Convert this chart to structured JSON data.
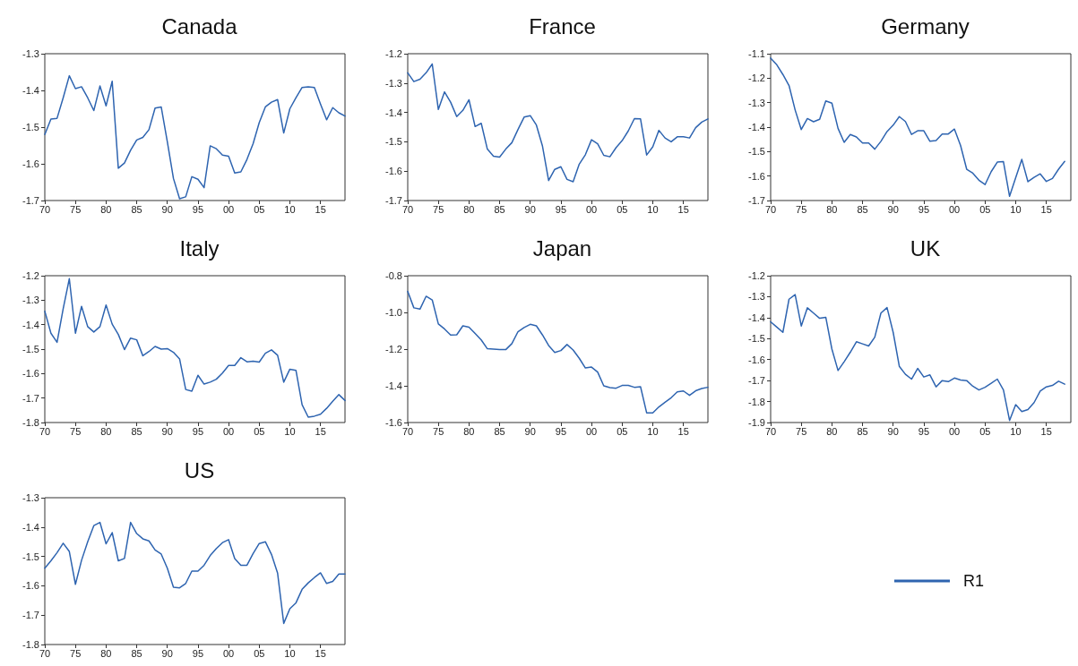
{
  "chart_data": [
    {
      "type": "line",
      "title": "Canada",
      "marker": "none",
      "grid": false,
      "xlim": [
        1970,
        2019
      ],
      "xticks": [
        {
          "value": 1970,
          "label": "70"
        },
        {
          "value": 1975,
          "label": "75"
        },
        {
          "value": 1980,
          "label": "80"
        },
        {
          "value": 1985,
          "label": "85"
        },
        {
          "value": 1990,
          "label": "90"
        },
        {
          "value": 1995,
          "label": "95"
        },
        {
          "value": 2000,
          "label": "00"
        },
        {
          "value": 2005,
          "label": "05"
        },
        {
          "value": 2010,
          "label": "10"
        },
        {
          "value": 2015,
          "label": "15"
        }
      ],
      "ylim": [
        -1.7,
        -1.3
      ],
      "yticks": [
        -1.7,
        -1.6,
        -1.5,
        -1.4,
        -1.3
      ],
      "x": [
        1970,
        1971,
        1972,
        1973,
        1974,
        1975,
        1976,
        1977,
        1978,
        1979,
        1980,
        1981,
        1982,
        1983,
        1984,
        1985,
        1986,
        1987,
        1988,
        1989,
        1990,
        1991,
        1992,
        1993,
        1994,
        1995,
        1996,
        1997,
        1998,
        1999,
        2000,
        2001,
        2002,
        2003,
        2004,
        2005,
        2006,
        2007,
        2008,
        2009,
        2010,
        2011,
        2012,
        2013,
        2014,
        2015,
        2016,
        2017,
        2018,
        2019
      ],
      "series": [
        {
          "color": "#2e64b0",
          "values": [
            -1.52,
            -1.478,
            -1.476,
            -1.42,
            -1.36,
            -1.395,
            -1.39,
            -1.42,
            -1.455,
            -1.388,
            -1.442,
            -1.375,
            -1.612,
            -1.598,
            -1.563,
            -1.535,
            -1.528,
            -1.507,
            -1.448,
            -1.445,
            -1.54,
            -1.64,
            -1.695,
            -1.69,
            -1.635,
            -1.642,
            -1.665,
            -1.551,
            -1.559,
            -1.576,
            -1.579,
            -1.625,
            -1.622,
            -1.588,
            -1.545,
            -1.488,
            -1.445,
            -1.432,
            -1.425,
            -1.516,
            -1.45,
            -1.42,
            -1.392,
            -1.39,
            -1.392,
            -1.437,
            -1.48,
            -1.447,
            -1.461,
            -1.47
          ]
        }
      ]
    },
    {
      "type": "line",
      "title": "France",
      "marker": "none",
      "grid": false,
      "xlim": [
        1970,
        2019
      ],
      "xticks": [
        {
          "value": 1970,
          "label": "70"
        },
        {
          "value": 1975,
          "label": "75"
        },
        {
          "value": 1980,
          "label": "80"
        },
        {
          "value": 1985,
          "label": "85"
        },
        {
          "value": 1990,
          "label": "90"
        },
        {
          "value": 1995,
          "label": "95"
        },
        {
          "value": 2000,
          "label": "00"
        },
        {
          "value": 2005,
          "label": "05"
        },
        {
          "value": 2010,
          "label": "10"
        },
        {
          "value": 2015,
          "label": "15"
        }
      ],
      "ylim": [
        -1.7,
        -1.2
      ],
      "yticks": [
        -1.7,
        -1.6,
        -1.5,
        -1.4,
        -1.3,
        -1.2
      ],
      "x": [
        1970,
        1971,
        1972,
        1973,
        1974,
        1975,
        1976,
        1977,
        1978,
        1979,
        1980,
        1981,
        1982,
        1983,
        1984,
        1985,
        1986,
        1987,
        1988,
        1989,
        1990,
        1991,
        1992,
        1993,
        1994,
        1995,
        1996,
        1997,
        1998,
        1999,
        2000,
        2001,
        2002,
        2003,
        2004,
        2005,
        2006,
        2007,
        2008,
        2009,
        2010,
        2011,
        2012,
        2013,
        2014,
        2015,
        2016,
        2017,
        2018,
        2019
      ],
      "series": [
        {
          "color": "#2e64b0",
          "values": [
            -1.265,
            -1.295,
            -1.287,
            -1.265,
            -1.235,
            -1.39,
            -1.33,
            -1.365,
            -1.414,
            -1.393,
            -1.357,
            -1.448,
            -1.437,
            -1.525,
            -1.549,
            -1.552,
            -1.525,
            -1.503,
            -1.458,
            -1.416,
            -1.411,
            -1.443,
            -1.515,
            -1.632,
            -1.594,
            -1.585,
            -1.628,
            -1.636,
            -1.576,
            -1.544,
            -1.493,
            -1.507,
            -1.546,
            -1.551,
            -1.52,
            -1.496,
            -1.463,
            -1.421,
            -1.422,
            -1.545,
            -1.517,
            -1.461,
            -1.487,
            -1.5,
            -1.483,
            -1.483,
            -1.487,
            -1.452,
            -1.433,
            -1.422
          ]
        }
      ]
    },
    {
      "type": "line",
      "title": "Germany",
      "marker": "none",
      "grid": false,
      "xlim": [
        1970,
        2019
      ],
      "xticks": [
        {
          "value": 1970,
          "label": "70"
        },
        {
          "value": 1975,
          "label": "75"
        },
        {
          "value": 1980,
          "label": "80"
        },
        {
          "value": 1985,
          "label": "85"
        },
        {
          "value": 1990,
          "label": "90"
        },
        {
          "value": 1995,
          "label": "95"
        },
        {
          "value": 2000,
          "label": "00"
        },
        {
          "value": 2005,
          "label": "05"
        },
        {
          "value": 2010,
          "label": "10"
        },
        {
          "value": 2015,
          "label": "15"
        }
      ],
      "ylim": [
        -1.7,
        -1.1
      ],
      "yticks": [
        -1.7,
        -1.6,
        -1.5,
        -1.4,
        -1.3,
        -1.2,
        -1.1
      ],
      "series": [
        {
          "color": "#2e64b0",
          "x": [
            1970,
            1971,
            1972,
            1973,
            1974,
            1975,
            1976,
            1977,
            1978,
            1979,
            1980,
            1981,
            1982,
            1983,
            1984,
            1985,
            1986,
            1987,
            1988,
            1989,
            1990,
            1991,
            1992,
            1993,
            1994,
            1995,
            1996,
            1997,
            1998,
            1999,
            2000,
            2001,
            2002,
            2003,
            2004,
            2005,
            2006,
            2007,
            2008,
            2009,
            2010,
            2011,
            2012,
            2013,
            2014,
            2015,
            2016,
            2017,
            2018
          ],
          "values": [
            -1.118,
            -1.145,
            -1.185,
            -1.23,
            -1.33,
            -1.41,
            -1.365,
            -1.378,
            -1.368,
            -1.293,
            -1.302,
            -1.405,
            -1.462,
            -1.43,
            -1.44,
            -1.465,
            -1.465,
            -1.49,
            -1.458,
            -1.418,
            -1.392,
            -1.357,
            -1.377,
            -1.43,
            -1.415,
            -1.415,
            -1.458,
            -1.455,
            -1.428,
            -1.428,
            -1.408,
            -1.475,
            -1.572,
            -1.588,
            -1.617,
            -1.635,
            -1.582,
            -1.543,
            -1.541,
            -1.683,
            -1.607,
            -1.532,
            -1.623,
            -1.605,
            -1.591,
            -1.622,
            -1.61,
            -1.572,
            -1.54
          ]
        }
      ]
    },
    {
      "type": "line",
      "title": "Italy",
      "marker": "none",
      "grid": false,
      "xlim": [
        1970,
        2019
      ],
      "xticks": [
        {
          "value": 1970,
          "label": "70"
        },
        {
          "value": 1975,
          "label": "75"
        },
        {
          "value": 1980,
          "label": "80"
        },
        {
          "value": 1985,
          "label": "85"
        },
        {
          "value": 1990,
          "label": "90"
        },
        {
          "value": 1995,
          "label": "95"
        },
        {
          "value": 2000,
          "label": "00"
        },
        {
          "value": 2005,
          "label": "05"
        },
        {
          "value": 2010,
          "label": "10"
        },
        {
          "value": 2015,
          "label": "15"
        }
      ],
      "ylim": [
        -1.8,
        -1.2
      ],
      "yticks": [
        -1.8,
        -1.7,
        -1.6,
        -1.5,
        -1.4,
        -1.3,
        -1.2
      ],
      "x": [
        1970,
        1971,
        1972,
        1973,
        1974,
        1975,
        1976,
        1977,
        1978,
        1979,
        1980,
        1981,
        1982,
        1983,
        1984,
        1985,
        1986,
        1987,
        1988,
        1989,
        1990,
        1991,
        1992,
        1993,
        1994,
        1995,
        1996,
        1997,
        1998,
        1999,
        2000,
        2001,
        2002,
        2003,
        2004,
        2005,
        2006,
        2007,
        2008,
        2009,
        2010,
        2011,
        2012,
        2013,
        2014,
        2015,
        2016,
        2017,
        2018,
        2019
      ],
      "series": [
        {
          "color": "#2e64b0",
          "values": [
            -1.345,
            -1.435,
            -1.472,
            -1.335,
            -1.212,
            -1.435,
            -1.325,
            -1.408,
            -1.43,
            -1.408,
            -1.32,
            -1.398,
            -1.44,
            -1.502,
            -1.455,
            -1.462,
            -1.527,
            -1.51,
            -1.489,
            -1.5,
            -1.498,
            -1.513,
            -1.54,
            -1.665,
            -1.672,
            -1.607,
            -1.643,
            -1.635,
            -1.623,
            -1.598,
            -1.567,
            -1.567,
            -1.535,
            -1.552,
            -1.549,
            -1.553,
            -1.517,
            -1.503,
            -1.525,
            -1.635,
            -1.582,
            -1.587,
            -1.727,
            -1.778,
            -1.774,
            -1.766,
            -1.742,
            -1.713,
            -1.686,
            -1.71
          ]
        }
      ]
    },
    {
      "type": "line",
      "title": "Japan",
      "marker": "none",
      "grid": false,
      "xlim": [
        1970,
        2019
      ],
      "xticks": [
        {
          "value": 1970,
          "label": "70"
        },
        {
          "value": 1975,
          "label": "75"
        },
        {
          "value": 1980,
          "label": "80"
        },
        {
          "value": 1985,
          "label": "85"
        },
        {
          "value": 1990,
          "label": "90"
        },
        {
          "value": 1995,
          "label": "95"
        },
        {
          "value": 2000,
          "label": "00"
        },
        {
          "value": 2005,
          "label": "05"
        },
        {
          "value": 2010,
          "label": "10"
        },
        {
          "value": 2015,
          "label": "15"
        }
      ],
      "ylim": [
        -1.6,
        -0.8
      ],
      "yticks": [
        -1.6,
        -1.4,
        -1.2,
        {
          "value": -1,
          "label": "-1.0"
        },
        -0.8
      ],
      "x": [
        1970,
        1971,
        1972,
        1973,
        1974,
        1975,
        1976,
        1977,
        1978,
        1979,
        1980,
        1981,
        1982,
        1983,
        1984,
        1985,
        1986,
        1987,
        1988,
        1989,
        1990,
        1991,
        1992,
        1993,
        1994,
        1995,
        1996,
        1997,
        1998,
        1999,
        2000,
        2001,
        2002,
        2003,
        2004,
        2005,
        2006,
        2007,
        2008,
        2009,
        2010,
        2011,
        2012,
        2013,
        2014,
        2015,
        2016,
        2017,
        2018,
        2019
      ],
      "series": [
        {
          "color": "#2e64b0",
          "values": [
            -0.885,
            -0.975,
            -0.982,
            -0.912,
            -0.932,
            -1.063,
            -1.09,
            -1.123,
            -1.122,
            -1.073,
            -1.08,
            -1.115,
            -1.15,
            -1.198,
            -1.2,
            -1.202,
            -1.203,
            -1.17,
            -1.105,
            -1.082,
            -1.065,
            -1.073,
            -1.123,
            -1.18,
            -1.218,
            -1.208,
            -1.175,
            -1.205,
            -1.25,
            -1.303,
            -1.298,
            -1.325,
            -1.4,
            -1.41,
            -1.413,
            -1.398,
            -1.398,
            -1.408,
            -1.405,
            -1.547,
            -1.548,
            -1.515,
            -1.49,
            -1.465,
            -1.433,
            -1.428,
            -1.452,
            -1.427,
            -1.415,
            -1.408
          ]
        }
      ]
    },
    {
      "type": "line",
      "title": "UK",
      "marker": "none",
      "grid": false,
      "xlim": [
        1970,
        2019
      ],
      "xticks": [
        {
          "value": 1970,
          "label": "70"
        },
        {
          "value": 1975,
          "label": "75"
        },
        {
          "value": 1980,
          "label": "80"
        },
        {
          "value": 1985,
          "label": "85"
        },
        {
          "value": 1990,
          "label": "90"
        },
        {
          "value": 1995,
          "label": "95"
        },
        {
          "value": 2000,
          "label": "00"
        },
        {
          "value": 2005,
          "label": "05"
        },
        {
          "value": 2010,
          "label": "10"
        },
        {
          "value": 2015,
          "label": "15"
        }
      ],
      "ylim": [
        -1.9,
        -1.2
      ],
      "yticks": [
        -1.9,
        -1.8,
        -1.7,
        -1.6,
        -1.5,
        -1.4,
        -1.3,
        -1.2
      ],
      "series": [
        {
          "color": "#2e64b0",
          "x": [
            1970,
            1971,
            1972,
            1973,
            1974,
            1975,
            1976,
            1977,
            1978,
            1979,
            1980,
            1981,
            1982,
            1983,
            1984,
            1985,
            1986,
            1987,
            1988,
            1989,
            1990,
            1991,
            1992,
            1993,
            1994,
            1995,
            1996,
            1997,
            1998,
            1999,
            2000,
            2001,
            2002,
            2003,
            2004,
            2005,
            2006,
            2007,
            2008,
            2009,
            2010,
            2011,
            2012,
            2013,
            2014,
            2015,
            2016,
            2017,
            2018
          ],
          "values": [
            -1.42,
            -1.445,
            -1.47,
            -1.312,
            -1.29,
            -1.44,
            -1.353,
            -1.378,
            -1.403,
            -1.398,
            -1.55,
            -1.652,
            -1.61,
            -1.565,
            -1.515,
            -1.525,
            -1.535,
            -1.493,
            -1.378,
            -1.352,
            -1.47,
            -1.632,
            -1.67,
            -1.693,
            -1.642,
            -1.683,
            -1.673,
            -1.73,
            -1.7,
            -1.705,
            -1.688,
            -1.697,
            -1.7,
            -1.727,
            -1.745,
            -1.732,
            -1.713,
            -1.693,
            -1.745,
            -1.89,
            -1.815,
            -1.848,
            -1.838,
            -1.805,
            -1.75,
            -1.73,
            -1.723,
            -1.703,
            -1.717
          ]
        }
      ]
    },
    {
      "type": "line",
      "title": "US",
      "marker": "none",
      "grid": false,
      "legend": "right",
      "xlim": [
        1970,
        2019
      ],
      "xticks": [
        {
          "value": 1970,
          "label": "70"
        },
        {
          "value": 1975,
          "label": "75"
        },
        {
          "value": 1980,
          "label": "80"
        },
        {
          "value": 1985,
          "label": "85"
        },
        {
          "value": 1990,
          "label": "90"
        },
        {
          "value": 1995,
          "label": "95"
        },
        {
          "value": 2000,
          "label": "00"
        },
        {
          "value": 2005,
          "label": "05"
        },
        {
          "value": 2010,
          "label": "10"
        },
        {
          "value": 2015,
          "label": "15"
        }
      ],
      "ylim": [
        -1.8,
        -1.3
      ],
      "yticks": [
        -1.8,
        -1.7,
        -1.6,
        -1.5,
        -1.4,
        -1.3
      ],
      "x": [
        1970,
        1971,
        1972,
        1973,
        1974,
        1975,
        1976,
        1977,
        1978,
        1979,
        1980,
        1981,
        1982,
        1983,
        1984,
        1985,
        1986,
        1987,
        1988,
        1989,
        1990,
        1991,
        1992,
        1993,
        1994,
        1995,
        1996,
        1997,
        1998,
        1999,
        2000,
        2001,
        2002,
        2003,
        2004,
        2005,
        2006,
        2007,
        2008,
        2009,
        2010,
        2011,
        2012,
        2013,
        2014,
        2015,
        2016,
        2017,
        2018,
        2019
      ],
      "series": [
        {
          "name": "R1",
          "color": "#2e64b0",
          "values": [
            -1.54,
            -1.515,
            -1.487,
            -1.455,
            -1.483,
            -1.595,
            -1.513,
            -1.45,
            -1.395,
            -1.384,
            -1.457,
            -1.419,
            -1.515,
            -1.507,
            -1.384,
            -1.422,
            -1.44,
            -1.447,
            -1.478,
            -1.492,
            -1.54,
            -1.605,
            -1.607,
            -1.592,
            -1.55,
            -1.55,
            -1.53,
            -1.497,
            -1.473,
            -1.453,
            -1.443,
            -1.507,
            -1.53,
            -1.53,
            -1.49,
            -1.456,
            -1.45,
            -1.493,
            -1.557,
            -1.728,
            -1.678,
            -1.658,
            -1.612,
            -1.59,
            -1.572,
            -1.556,
            -1.592,
            -1.585,
            -1.56,
            -1.56
          ]
        }
      ]
    }
  ]
}
